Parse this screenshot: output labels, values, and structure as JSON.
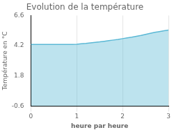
{
  "chart_data": {
    "type": "area",
    "title": "Evolution de la température",
    "xlabel": "heure par heure",
    "ylabel": "Température en °C",
    "x": [
      0.0,
      0.1,
      0.2,
      0.3,
      0.4,
      0.5,
      0.6,
      0.7,
      0.8,
      0.9,
      1.0,
      1.1,
      1.2,
      1.3,
      1.4,
      1.5,
      1.6,
      1.7,
      1.8,
      1.9,
      2.0,
      2.1,
      2.2,
      2.3,
      2.4,
      2.5,
      2.6,
      2.7,
      2.8,
      2.9,
      3.0
    ],
    "values": [
      4.3,
      4.3,
      4.3,
      4.3,
      4.3,
      4.3,
      4.3,
      4.3,
      4.3,
      4.3,
      4.32,
      4.35,
      4.38,
      4.42,
      4.46,
      4.5,
      4.55,
      4.6,
      4.65,
      4.7,
      4.76,
      4.82,
      4.88,
      4.95,
      5.02,
      5.1,
      5.18,
      5.26,
      5.32,
      5.38,
      5.44
    ],
    "color": "#5ab8d5",
    "xlim": [
      0,
      3
    ],
    "xticks": [
      0,
      1,
      2,
      3
    ],
    "ylim": [
      -0.6,
      6.6
    ],
    "yticks": [
      -0.6,
      1.8,
      4.2,
      6.6
    ],
    "grid": "x"
  }
}
